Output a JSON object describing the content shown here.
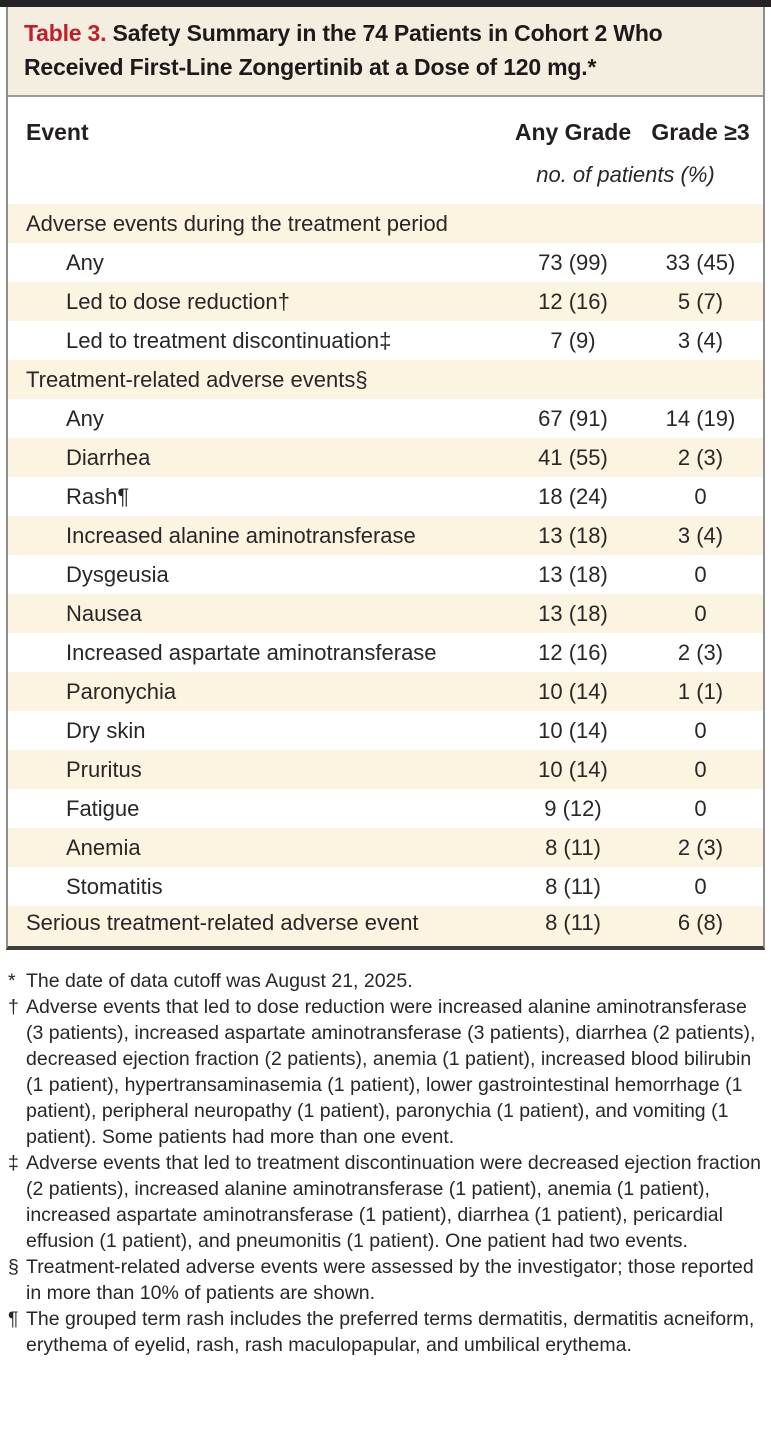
{
  "table": {
    "label": "Table 3.",
    "title": "Safety Summary in the 74 Patients in Cohort 2 Who Received First-Line Zongertinib at a Dose of 120 mg.*",
    "columns": {
      "event": "Event",
      "any_grade": "Any Grade",
      "grade_ge_3": "Grade ≥3"
    },
    "units_note": "no. of patients (%)",
    "rows": [
      {
        "label": "Adverse events during the treatment period",
        "indent": 0,
        "section": true,
        "any_grade": "",
        "grade3": ""
      },
      {
        "label": "Any",
        "indent": 1,
        "any_grade": "73 (99)",
        "grade3": "33 (45)"
      },
      {
        "label": "Led to dose reduction†",
        "indent": 1,
        "any_grade": "12 (16)",
        "grade3": "5 (7)"
      },
      {
        "label": "Led to treatment discontinuation‡",
        "indent": 1,
        "any_grade": "7 (9)",
        "grade3": "3 (4)"
      },
      {
        "label": "Treatment-related adverse events§",
        "indent": 0,
        "section": true,
        "any_grade": "",
        "grade3": ""
      },
      {
        "label": "Any",
        "indent": 1,
        "any_grade": "67 (91)",
        "grade3": "14 (19)"
      },
      {
        "label": "Diarrhea",
        "indent": 1,
        "any_grade": "41 (55)",
        "grade3": "2 (3)"
      },
      {
        "label": "Rash¶",
        "indent": 1,
        "any_grade": "18 (24)",
        "grade3": "0"
      },
      {
        "label": "Increased alanine aminotransferase",
        "indent": 1,
        "any_grade": "13 (18)",
        "grade3": "3 (4)"
      },
      {
        "label": "Dysgeusia",
        "indent": 1,
        "any_grade": "13 (18)",
        "grade3": "0"
      },
      {
        "label": "Nausea",
        "indent": 1,
        "any_grade": "13 (18)",
        "grade3": "0"
      },
      {
        "label": "Increased aspartate aminotransferase",
        "indent": 1,
        "any_grade": "12 (16)",
        "grade3": "2 (3)"
      },
      {
        "label": "Paronychia",
        "indent": 1,
        "any_grade": "10 (14)",
        "grade3": "1 (1)"
      },
      {
        "label": "Dry skin",
        "indent": 1,
        "any_grade": "10 (14)",
        "grade3": "0"
      },
      {
        "label": "Pruritus",
        "indent": 1,
        "any_grade": "10 (14)",
        "grade3": "0"
      },
      {
        "label": "Fatigue",
        "indent": 1,
        "any_grade": "9 (12)",
        "grade3": "0"
      },
      {
        "label": "Anemia",
        "indent": 1,
        "any_grade": "8 (11)",
        "grade3": "2 (3)"
      },
      {
        "label": "Stomatitis",
        "indent": 1,
        "any_grade": "8 (11)",
        "grade3": "0"
      },
      {
        "label": "Serious treatment-related adverse event",
        "indent": 0,
        "section": false,
        "any_grade": "8 (11)",
        "grade3": "6 (8)"
      }
    ],
    "footnotes": [
      {
        "marker": "*",
        "text": "The date of data cutoff was August 21, 2025."
      },
      {
        "marker": "†",
        "text": "Adverse events that led to dose reduction were increased alanine aminotransferase (3 patients), increased aspartate aminotransferase (3 patients), diarrhea (2 patients), decreased ejection fraction (2 patients), anemia (1 patient), increased blood bilirubin (1 patient), hypertransaminasemia (1 patient), lower gastrointestinal hemorrhage (1 patient), peripheral neuropathy (1 patient), paronychia (1 patient), and vomiting (1 patient). Some patients had more than one event."
      },
      {
        "marker": "‡",
        "text": "Adverse events that led to treatment discontinuation were decreased ejection fraction (2 patients), increased alanine aminotransferase (1 patient), anemia (1 patient), increased aspartate aminotransferase (1 patient), diarrhea (1 patient), pericardial effusion (1 patient), and pneumonitis (1 patient). One patient had two events."
      },
      {
        "marker": "§",
        "text": "Treatment-related adverse events were assessed by the investigator; those reported in more than 10% of patients are shown."
      },
      {
        "marker": "¶",
        "text": "The grouped term rash includes the preferred terms dermatitis, dermatitis acneiform, erythema of eyelid, rash, rash maculopapular, and umbilical erythema."
      }
    ],
    "colors": {
      "accent_red": "#c21e2c",
      "stripe_cream": "#fbf4e1",
      "title_band_cream": "#f4eee0",
      "border_gray": "#8f8f8f",
      "heavy_rule_dark": "#272324",
      "text": "#231f20"
    }
  }
}
